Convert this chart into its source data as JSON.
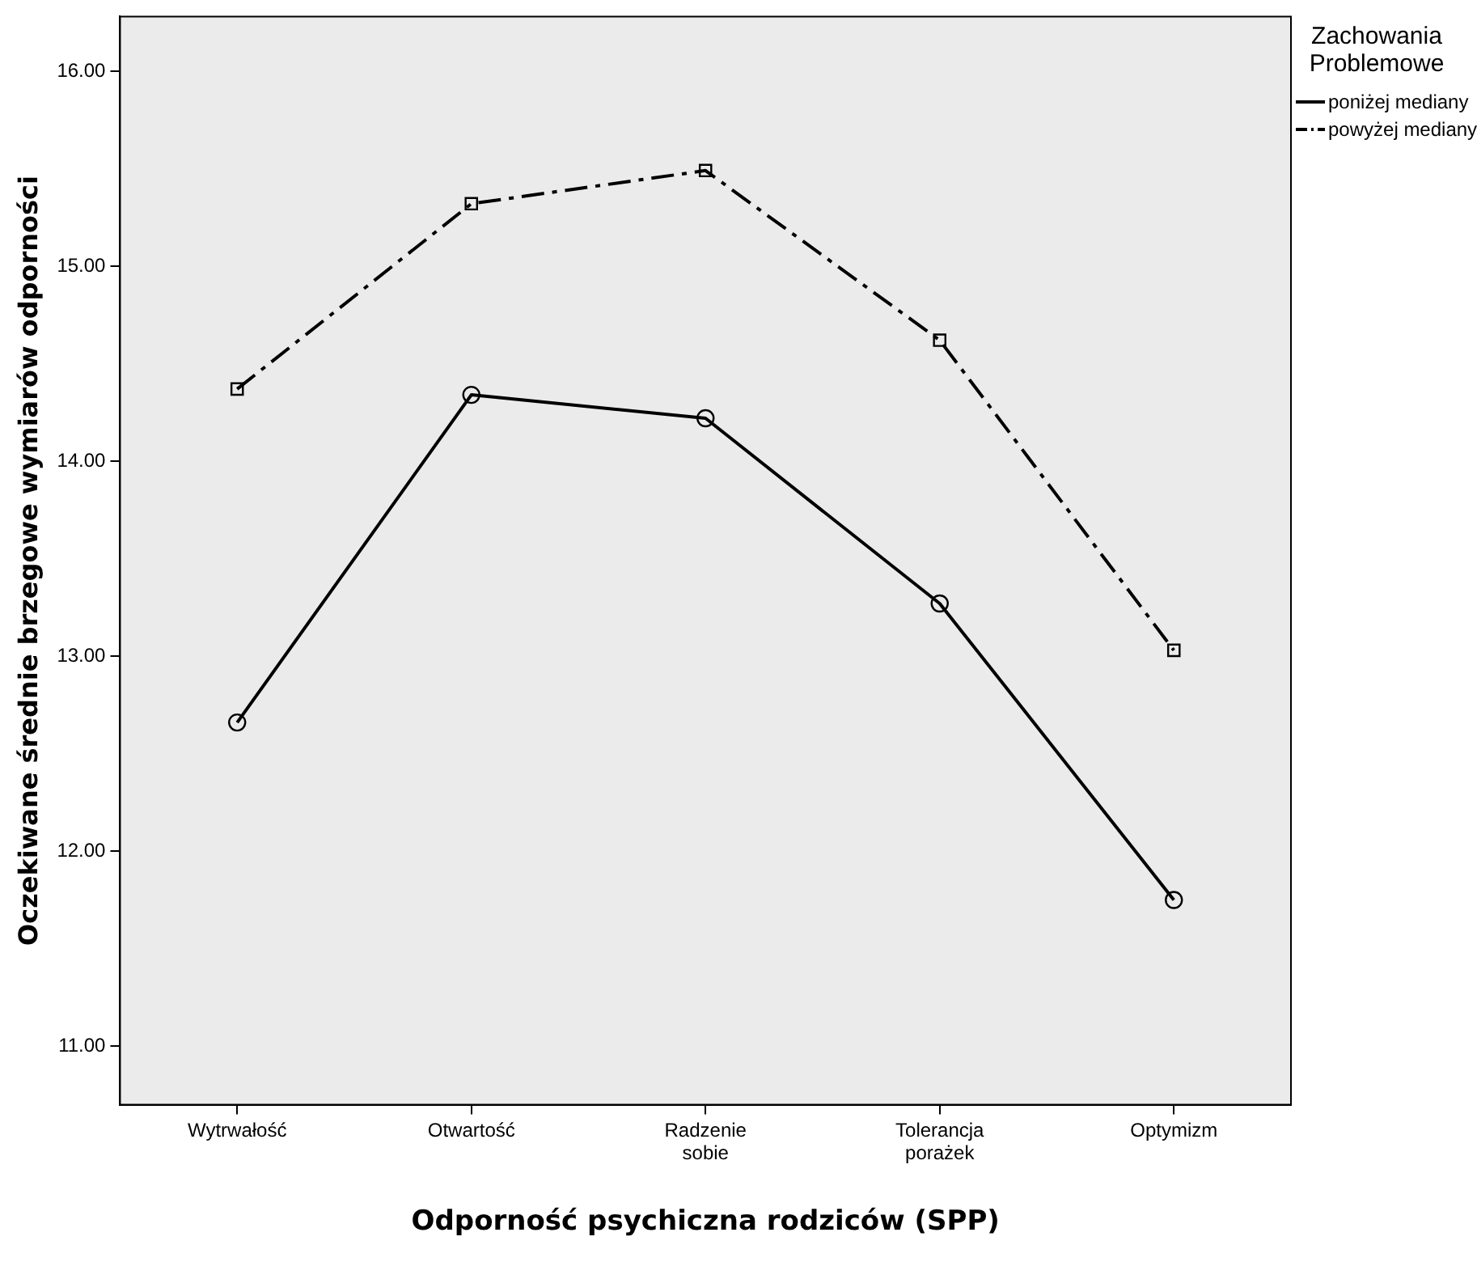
{
  "chart_data": {
    "type": "line",
    "xlabel": "Odporność psychiczna rodziców (SPP)",
    "ylabel": "Oczekiwane średnie brzegowe wymiarów odporności",
    "legend_title": "Zachowania Problemowe",
    "legend": "top right",
    "grid": false,
    "categories": [
      "Wytrwałość",
      "Otwartość",
      "Radzenie sobie",
      "Tolerancja porażek",
      "Optymizm"
    ],
    "ylim": [
      10.7,
      16.28
    ],
    "yticks": [
      {
        "value": 11,
        "label": "11.00"
      },
      {
        "value": 12,
        "label": "12.00"
      },
      {
        "value": 13,
        "label": "13.00"
      },
      {
        "value": 14,
        "label": "14.00"
      },
      {
        "value": 15,
        "label": "15.00"
      },
      {
        "value": 16,
        "label": "16.00"
      }
    ],
    "series": [
      {
        "name": "poniżej mediany",
        "color": "#000000",
        "marker": "circle",
        "line_style": "solid",
        "values": [
          12.66,
          14.34,
          14.22,
          13.27,
          11.75
        ]
      },
      {
        "name": "powyżej mediany",
        "color": "#000000",
        "marker": "square",
        "line_style": "dashed",
        "values": [
          14.37,
          15.32,
          15.49,
          14.62,
          13.03
        ]
      }
    ]
  }
}
